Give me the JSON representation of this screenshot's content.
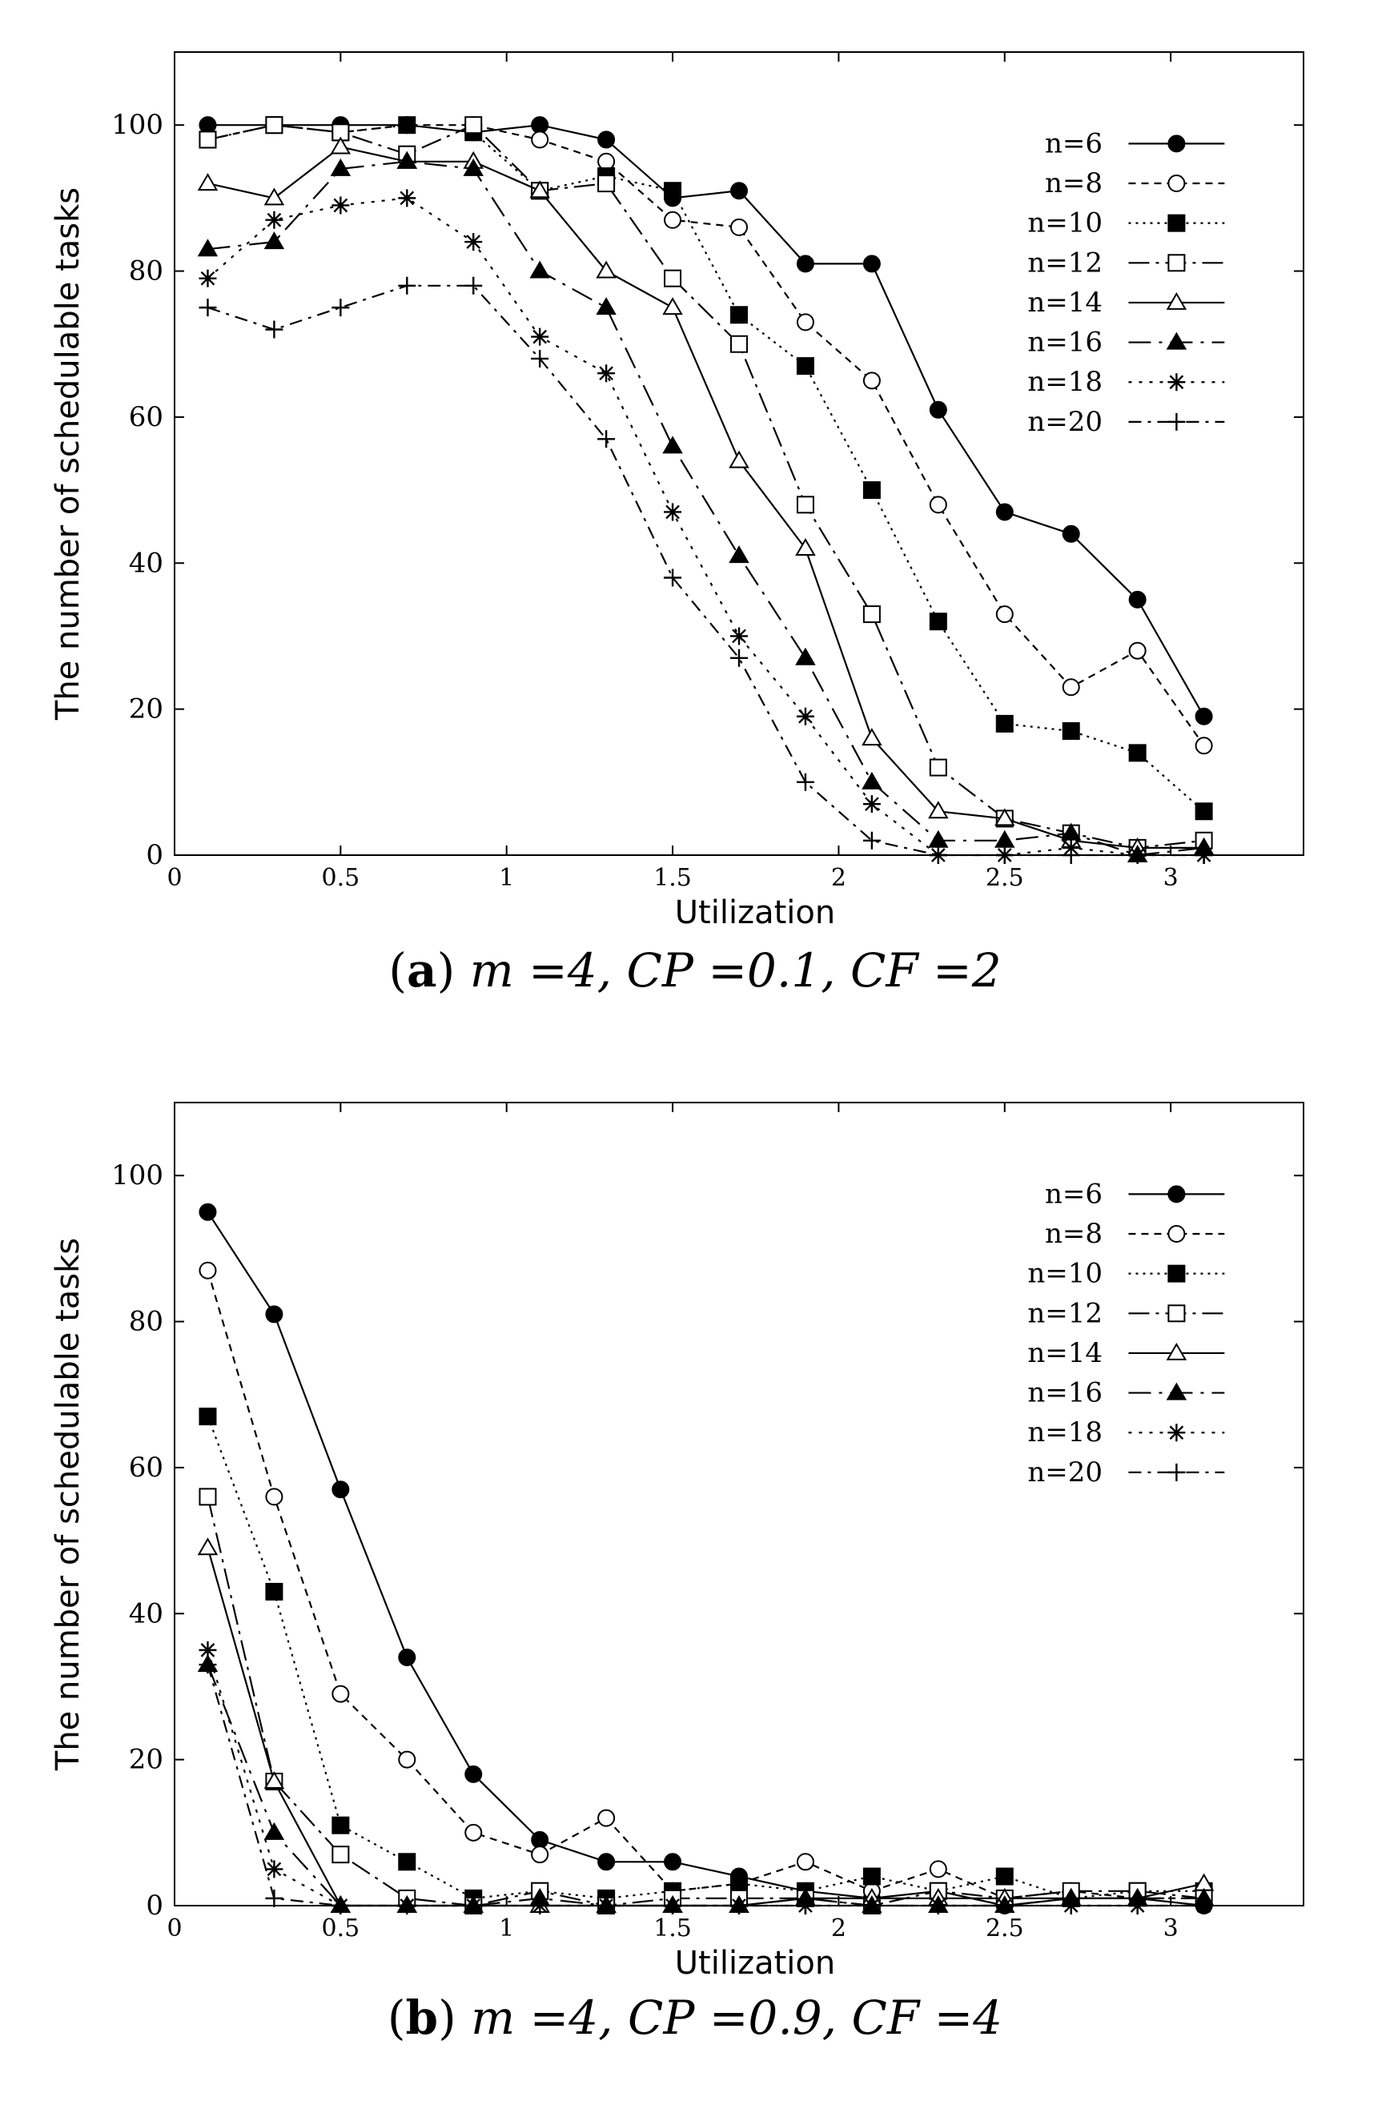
{
  "chart_data": [
    {
      "id": "a",
      "type": "line",
      "caption": {
        "label": "a",
        "text": "m =4, CP =0.1, CF =2"
      },
      "xlabel": "Utilization",
      "ylabel": "The number of schedulable tasks",
      "xlim": [
        0,
        3.4
      ],
      "ylim": [
        0,
        110
      ],
      "xticks": [
        "0",
        "0.5",
        "1",
        "1.5",
        "2",
        "2.5",
        "3"
      ],
      "yticks": [
        "0",
        "20",
        "40",
        "60",
        "80",
        "100"
      ],
      "legend_position": "top-right",
      "x": [
        0.1,
        0.3,
        0.5,
        0.7,
        0.9,
        1.1,
        1.3,
        1.5,
        1.7,
        1.9,
        2.1,
        2.3,
        2.5,
        2.7,
        2.9,
        3.1
      ],
      "series": [
        {
          "name": "n=6",
          "values": [
            100,
            100,
            100,
            100,
            99,
            100,
            98,
            90,
            91,
            81,
            81,
            61,
            47,
            44,
            35,
            19
          ]
        },
        {
          "name": "n=8",
          "values": [
            98,
            100,
            99,
            100,
            100,
            98,
            95,
            87,
            86,
            73,
            65,
            48,
            33,
            23,
            28,
            15
          ]
        },
        {
          "name": "n=10",
          "values": [
            98,
            100,
            99,
            100,
            99,
            91,
            93,
            91,
            74,
            67,
            50,
            32,
            18,
            17,
            14,
            6
          ]
        },
        {
          "name": "n=12",
          "values": [
            98,
            100,
            99,
            96,
            100,
            91,
            92,
            79,
            70,
            48,
            33,
            12,
            5,
            3,
            1,
            2
          ]
        },
        {
          "name": "n=14",
          "values": [
            92,
            90,
            97,
            95,
            95,
            91,
            80,
            75,
            54,
            42,
            16,
            6,
            5,
            2,
            1,
            1
          ]
        },
        {
          "name": "n=16",
          "values": [
            83,
            84,
            94,
            95,
            94,
            80,
            75,
            56,
            41,
            27,
            10,
            2,
            2,
            3,
            0,
            1
          ]
        },
        {
          "name": "n=18",
          "values": [
            79,
            87,
            89,
            90,
            84,
            71,
            66,
            47,
            30,
            19,
            7,
            0,
            0,
            1,
            0,
            0
          ]
        },
        {
          "name": "n=20",
          "values": [
            75,
            72,
            75,
            78,
            78,
            68,
            57,
            38,
            27,
            10,
            2,
            0,
            0,
            0,
            0,
            0
          ]
        }
      ]
    },
    {
      "id": "b",
      "type": "line",
      "caption": {
        "label": "b",
        "text": "m =4, CP =0.9, CF =4"
      },
      "xlabel": "Utilization",
      "ylabel": "The number of schedulable tasks",
      "xlim": [
        0,
        3.4
      ],
      "ylim": [
        0,
        110
      ],
      "xticks": [
        "0",
        "0.5",
        "1",
        "1.5",
        "2",
        "2.5",
        "3"
      ],
      "yticks": [
        "0",
        "20",
        "40",
        "60",
        "80",
        "100"
      ],
      "legend_position": "top-right",
      "x": [
        0.1,
        0.3,
        0.5,
        0.7,
        0.9,
        1.1,
        1.3,
        1.5,
        1.7,
        1.9,
        2.1,
        2.3,
        2.5,
        2.7,
        2.9,
        3.1
      ],
      "series": [
        {
          "name": "n=6",
          "values": [
            95,
            81,
            57,
            34,
            18,
            9,
            6,
            6,
            4,
            2,
            1,
            2,
            0,
            1,
            1,
            0
          ]
        },
        {
          "name": "n=8",
          "values": [
            87,
            56,
            29,
            20,
            10,
            7,
            12,
            2,
            3,
            6,
            2,
            5,
            1,
            2,
            1,
            1
          ]
        },
        {
          "name": "n=10",
          "values": [
            67,
            43,
            11,
            6,
            1,
            2,
            1,
            2,
            3,
            2,
            4,
            2,
            4,
            1,
            2,
            2
          ]
        },
        {
          "name": "n=12",
          "values": [
            56,
            17,
            7,
            1,
            0,
            2,
            0,
            1,
            1,
            1,
            0,
            2,
            1,
            2,
            2,
            1
          ]
        },
        {
          "name": "n=14",
          "values": [
            49,
            17,
            0,
            0,
            0,
            0,
            0,
            0,
            0,
            1,
            1,
            1,
            1,
            1,
            1,
            3
          ]
        },
        {
          "name": "n=16",
          "values": [
            33,
            10,
            0,
            0,
            0,
            1,
            0,
            0,
            0,
            1,
            0,
            0,
            0,
            1,
            1,
            1
          ]
        },
        {
          "name": "n=18",
          "values": [
            35,
            5,
            0,
            0,
            0,
            0,
            0,
            0,
            0,
            0,
            0,
            0,
            0,
            0,
            0,
            0
          ]
        },
        {
          "name": "n=20",
          "values": [
            33,
            1,
            0,
            0,
            0,
            0,
            0,
            0,
            0,
            0,
            0,
            0,
            0,
            0,
            0,
            0
          ]
        }
      ]
    }
  ]
}
